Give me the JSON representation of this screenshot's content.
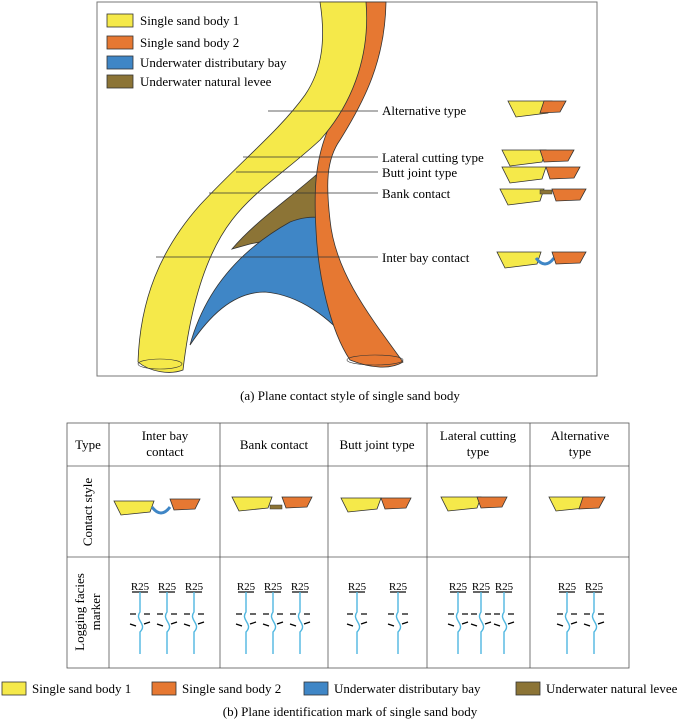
{
  "legend": {
    "yellow": "Single sand body 1",
    "orange": "Single sand body 2",
    "blue": "Underwater distributary bay",
    "brown": "Underwater natural levee"
  },
  "colors": {
    "yellow": "#f5e94a",
    "orange": "#e67832",
    "blue": "#3f86c6",
    "brown": "#8c7436",
    "well": "#4fb7e0"
  },
  "panel_a": {
    "labels": {
      "alternative": "Alternative type",
      "lateral": "Lateral cutting type",
      "butt": "Butt joint type",
      "bank": "Bank contact",
      "interbay": "Inter bay contact"
    },
    "caption": "(a) Plane contact style of single sand body"
  },
  "panel_b": {
    "headers": {
      "type": "Type",
      "interbay_1": "Inter bay",
      "interbay_2": "contact",
      "bank": "Bank contact",
      "butt": "Butt joint type",
      "lateral_1": "Lateral cutting",
      "lateral_2": "type",
      "alternative_1": "Alternative",
      "alternative_2": "type"
    },
    "row_labels": {
      "contact_style": "Contact style",
      "logging_1": "Logging facies",
      "logging_2": "marker"
    },
    "well_label": "R25",
    "caption": "(b) Plane identification mark of single sand body"
  }
}
